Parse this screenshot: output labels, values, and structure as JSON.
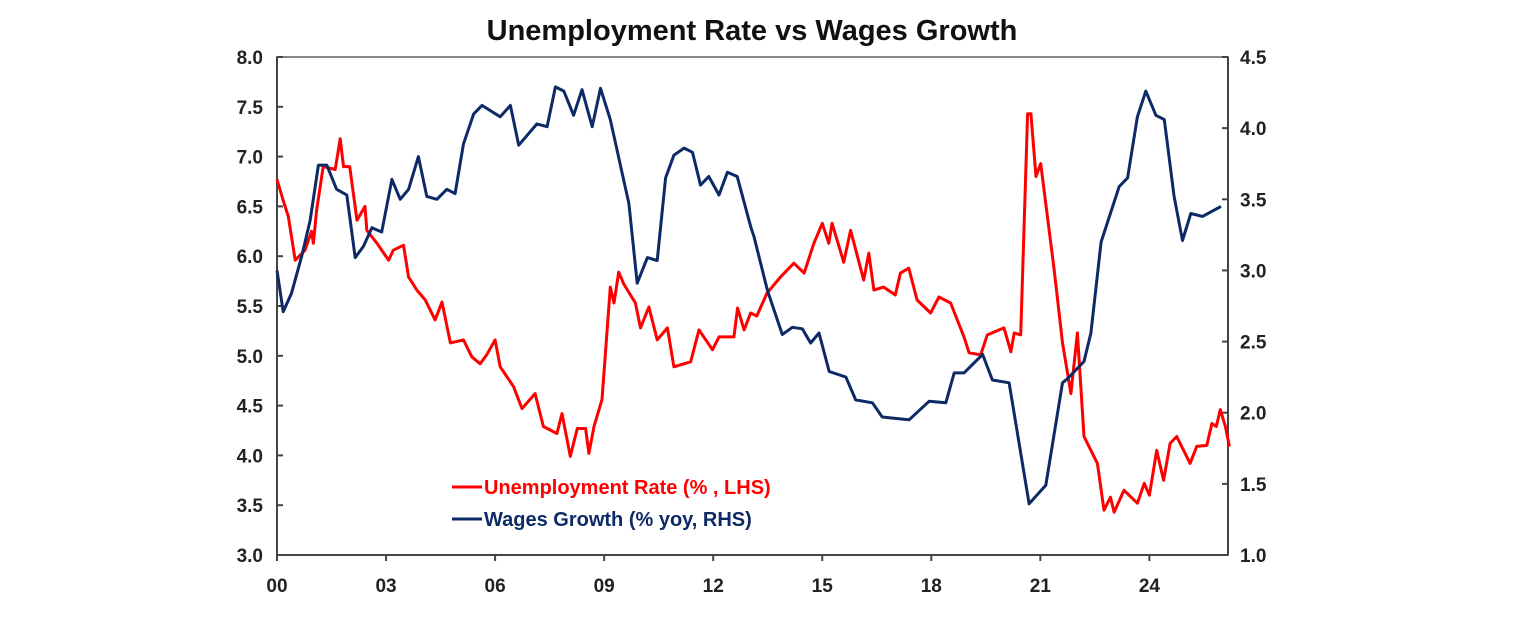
{
  "chart_data": {
    "type": "line",
    "title": "Unemployment Rate vs Wages Growth",
    "x_tick_labels": [
      "00",
      "03",
      "06",
      "09",
      "12",
      "15",
      "18",
      "21",
      "24"
    ],
    "x_tick_years": [
      2000,
      2003,
      2006,
      2009,
      2012,
      2015,
      2018,
      2021,
      2024
    ],
    "xlim": [
      2000,
      2026.2
    ],
    "y_left": {
      "lim": [
        3.0,
        8.0
      ],
      "ticks": [
        "3.0",
        "3.5",
        "4.0",
        "4.5",
        "5.0",
        "5.5",
        "6.0",
        "6.5",
        "7.0",
        "7.5",
        "8.0"
      ]
    },
    "y_right": {
      "lim": [
        1.0,
        4.5
      ],
      "ticks": [
        "1.0",
        "1.5",
        "2.0",
        "2.5",
        "3.0",
        "3.5",
        "4.0",
        "4.5"
      ]
    },
    "grid": false,
    "legend_position": "bottom-left",
    "series": [
      {
        "name": "Unemployment Rate (% , LHS)",
        "axis": "left",
        "color": "#ff0000",
        "points": [
          [
            2000.0,
            6.77
          ],
          [
            2000.17,
            6.56
          ],
          [
            2000.31,
            6.4
          ],
          [
            2000.5,
            5.96
          ],
          [
            2000.77,
            6.06
          ],
          [
            2000.95,
            6.25
          ],
          [
            2001.0,
            6.13
          ],
          [
            2001.09,
            6.46
          ],
          [
            2001.27,
            6.9
          ],
          [
            2001.6,
            6.87
          ],
          [
            2001.74,
            7.18
          ],
          [
            2001.83,
            6.9
          ],
          [
            2002.0,
            6.9
          ],
          [
            2002.2,
            6.36
          ],
          [
            2002.42,
            6.5
          ],
          [
            2002.47,
            6.26
          ],
          [
            2002.75,
            6.13
          ],
          [
            2003.07,
            5.96
          ],
          [
            2003.2,
            6.06
          ],
          [
            2003.48,
            6.11
          ],
          [
            2003.62,
            5.79
          ],
          [
            2003.85,
            5.66
          ],
          [
            2004.08,
            5.56
          ],
          [
            2004.35,
            5.36
          ],
          [
            2004.54,
            5.54
          ],
          [
            2004.77,
            5.13
          ],
          [
            2005.13,
            5.16
          ],
          [
            2005.36,
            4.99
          ],
          [
            2005.59,
            4.92
          ],
          [
            2005.77,
            5.01
          ],
          [
            2006.0,
            5.16
          ],
          [
            2006.14,
            4.89
          ],
          [
            2006.51,
            4.69
          ],
          [
            2006.74,
            4.47
          ],
          [
            2007.1,
            4.62
          ],
          [
            2007.33,
            4.29
          ],
          [
            2007.7,
            4.22
          ],
          [
            2007.84,
            4.42
          ],
          [
            2008.07,
            3.99
          ],
          [
            2008.26,
            4.27
          ],
          [
            2008.49,
            4.27
          ],
          [
            2008.58,
            4.02
          ],
          [
            2008.72,
            4.29
          ],
          [
            2008.94,
            4.56
          ],
          [
            2009.17,
            5.69
          ],
          [
            2009.27,
            5.53
          ],
          [
            2009.4,
            5.84
          ],
          [
            2009.54,
            5.72
          ],
          [
            2009.86,
            5.53
          ],
          [
            2010.0,
            5.28
          ],
          [
            2010.23,
            5.49
          ],
          [
            2010.46,
            5.16
          ],
          [
            2010.74,
            5.28
          ],
          [
            2010.92,
            4.89
          ],
          [
            2011.38,
            4.94
          ],
          [
            2011.61,
            5.26
          ],
          [
            2011.98,
            5.06
          ],
          [
            2012.16,
            5.19
          ],
          [
            2012.57,
            5.19
          ],
          [
            2012.67,
            5.48
          ],
          [
            2012.85,
            5.26
          ],
          [
            2013.03,
            5.43
          ],
          [
            2013.2,
            5.4
          ],
          [
            2013.48,
            5.63
          ],
          [
            2013.85,
            5.79
          ],
          [
            2014.22,
            5.93
          ],
          [
            2014.5,
            5.83
          ],
          [
            2014.77,
            6.13
          ],
          [
            2015.0,
            6.33
          ],
          [
            2015.18,
            6.13
          ],
          [
            2015.27,
            6.33
          ],
          [
            2015.59,
            5.94
          ],
          [
            2015.78,
            6.26
          ],
          [
            2016.14,
            5.76
          ],
          [
            2016.28,
            6.03
          ],
          [
            2016.42,
            5.66
          ],
          [
            2016.69,
            5.69
          ],
          [
            2017.01,
            5.61
          ],
          [
            2017.15,
            5.83
          ],
          [
            2017.38,
            5.88
          ],
          [
            2017.61,
            5.56
          ],
          [
            2017.98,
            5.43
          ],
          [
            2018.21,
            5.59
          ],
          [
            2018.53,
            5.53
          ],
          [
            2018.9,
            5.19
          ],
          [
            2019.04,
            5.03
          ],
          [
            2019.36,
            5.01
          ],
          [
            2019.54,
            5.21
          ],
          [
            2020.0,
            5.28
          ],
          [
            2020.19,
            5.04
          ],
          [
            2020.28,
            5.23
          ],
          [
            2020.46,
            5.21
          ],
          [
            2020.65,
            7.43
          ],
          [
            2020.74,
            7.43
          ],
          [
            2020.88,
            6.8
          ],
          [
            2021.01,
            6.93
          ],
          [
            2021.38,
            5.86
          ],
          [
            2021.61,
            5.13
          ],
          [
            2021.84,
            4.62
          ],
          [
            2022.02,
            5.23
          ],
          [
            2022.2,
            4.19
          ],
          [
            2022.57,
            3.92
          ],
          [
            2022.75,
            3.45
          ],
          [
            2022.93,
            3.58
          ],
          [
            2023.03,
            3.43
          ],
          [
            2023.3,
            3.65
          ],
          [
            2023.67,
            3.52
          ],
          [
            2023.86,
            3.72
          ],
          [
            2024.0,
            3.6
          ],
          [
            2024.2,
            4.05
          ],
          [
            2024.39,
            3.75
          ],
          [
            2024.57,
            4.12
          ],
          [
            2024.75,
            4.19
          ],
          [
            2025.12,
            3.92
          ],
          [
            2025.3,
            4.09
          ],
          [
            2025.58,
            4.1
          ],
          [
            2025.72,
            4.32
          ],
          [
            2025.84,
            4.29
          ],
          [
            2025.95,
            4.46
          ],
          [
            2026.09,
            4.29
          ],
          [
            2026.2,
            4.09
          ]
        ]
      },
      {
        "name": "Wages Growth (% yoy, RHS)",
        "axis": "right",
        "color": "#0d2a66",
        "points": [
          [
            2000.0,
            3.0
          ],
          [
            2000.17,
            2.71
          ],
          [
            2000.4,
            2.84
          ],
          [
            2000.68,
            3.1
          ],
          [
            2000.91,
            3.35
          ],
          [
            2001.14,
            3.74
          ],
          [
            2001.37,
            3.74
          ],
          [
            2001.64,
            3.57
          ],
          [
            2001.92,
            3.53
          ],
          [
            2002.15,
            3.09
          ],
          [
            2002.38,
            3.17
          ],
          [
            2002.61,
            3.3
          ],
          [
            2002.88,
            3.27
          ],
          [
            2003.16,
            3.64
          ],
          [
            2003.39,
            3.5
          ],
          [
            2003.62,
            3.57
          ],
          [
            2003.89,
            3.8
          ],
          [
            2004.12,
            3.52
          ],
          [
            2004.4,
            3.5
          ],
          [
            2004.67,
            3.57
          ],
          [
            2004.9,
            3.54
          ],
          [
            2005.13,
            3.89
          ],
          [
            2005.41,
            4.1
          ],
          [
            2005.64,
            4.16
          ],
          [
            2006.14,
            4.08
          ],
          [
            2006.42,
            4.16
          ],
          [
            2006.65,
            3.88
          ],
          [
            2007.15,
            4.03
          ],
          [
            2007.43,
            4.01
          ],
          [
            2007.66,
            4.29
          ],
          [
            2007.89,
            4.26
          ],
          [
            2008.16,
            4.09
          ],
          [
            2008.39,
            4.27
          ],
          [
            2008.67,
            4.01
          ],
          [
            2008.9,
            4.28
          ],
          [
            2009.17,
            4.06
          ],
          [
            2009.68,
            3.47
          ],
          [
            2009.91,
            2.91
          ],
          [
            2010.19,
            3.09
          ],
          [
            2010.46,
            3.07
          ],
          [
            2010.69,
            3.65
          ],
          [
            2010.92,
            3.81
          ],
          [
            2011.2,
            3.86
          ],
          [
            2011.43,
            3.83
          ],
          [
            2011.65,
            3.6
          ],
          [
            2011.88,
            3.66
          ],
          [
            2012.16,
            3.53
          ],
          [
            2012.39,
            3.69
          ],
          [
            2012.66,
            3.66
          ],
          [
            2013.03,
            3.31
          ],
          [
            2013.12,
            3.24
          ],
          [
            2013.49,
            2.86
          ],
          [
            2013.9,
            2.55
          ],
          [
            2014.18,
            2.6
          ],
          [
            2014.45,
            2.59
          ],
          [
            2014.68,
            2.49
          ],
          [
            2014.91,
            2.56
          ],
          [
            2015.19,
            2.29
          ],
          [
            2015.65,
            2.25
          ],
          [
            2015.92,
            2.09
          ],
          [
            2016.38,
            2.07
          ],
          [
            2016.65,
            1.97
          ],
          [
            2017.39,
            1.95
          ],
          [
            2017.94,
            2.08
          ],
          [
            2018.4,
            2.07
          ],
          [
            2018.63,
            2.28
          ],
          [
            2018.9,
            2.28
          ],
          [
            2019.41,
            2.41
          ],
          [
            2019.68,
            2.23
          ],
          [
            2020.14,
            2.21
          ],
          [
            2020.69,
            1.36
          ],
          [
            2021.15,
            1.49
          ],
          [
            2021.61,
            2.21
          ],
          [
            2021.75,
            2.24
          ],
          [
            2022.2,
            2.36
          ],
          [
            2022.39,
            2.56
          ],
          [
            2022.67,
            3.2
          ],
          [
            2023.17,
            3.59
          ],
          [
            2023.4,
            3.65
          ],
          [
            2023.67,
            4.08
          ],
          [
            2023.9,
            4.26
          ],
          [
            2024.18,
            4.09
          ],
          [
            2024.41,
            4.06
          ],
          [
            2024.68,
            3.52
          ],
          [
            2024.91,
            3.21
          ],
          [
            2025.14,
            3.4
          ],
          [
            2025.46,
            3.38
          ],
          [
            2025.97,
            3.45
          ]
        ]
      }
    ]
  }
}
